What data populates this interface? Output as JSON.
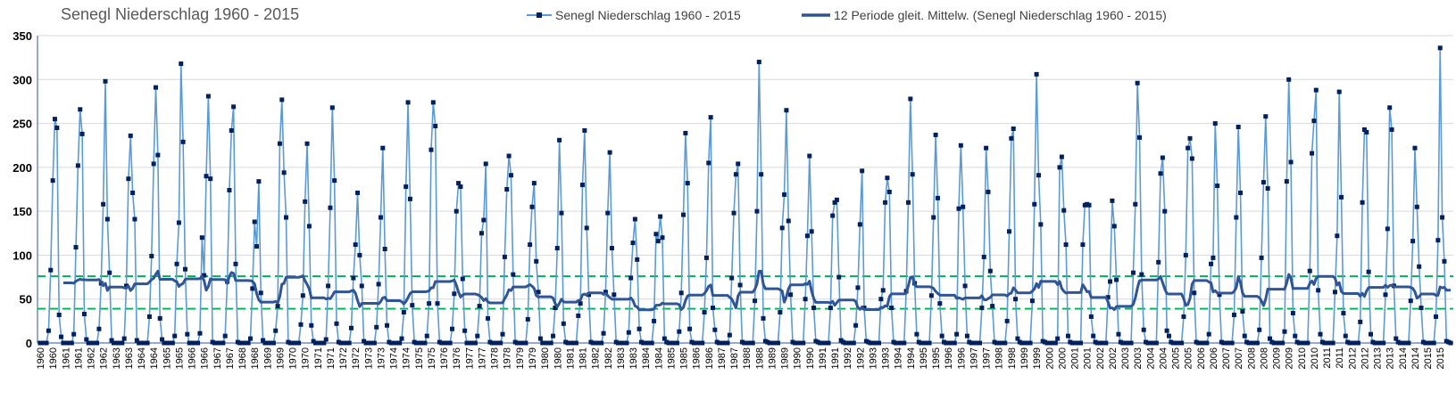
{
  "chart_data": {
    "type": "line",
    "title": "Senegl Niederschlag 1960 - 2015",
    "ylim": [
      0,
      350
    ],
    "yticks": [
      0,
      50,
      100,
      150,
      200,
      250,
      300,
      350
    ],
    "grid": "horizontal",
    "legend_placement": "top",
    "x_start_year": 1960,
    "x_end_year": 2015,
    "colors": {
      "series": "#5b9bd5",
      "markers": "#002060",
      "moving_average": "#2f5597",
      "reference_lines": "#00b050"
    },
    "reference_lines": [
      76,
      39
    ],
    "series": [
      {
        "name": "Senegl Niederschlag 1960 - 2015",
        "monthly_values_by_year": [
          [
            0,
            0,
            0,
            0,
            14,
            83,
            185,
            255,
            245,
            32,
            7,
            0
          ],
          [
            0,
            0,
            0,
            0,
            10,
            109,
            202,
            266,
            238,
            33,
            4,
            0
          ],
          [
            0,
            0,
            0,
            0,
            16,
            68,
            158,
            298,
            141,
            80,
            3,
            0
          ],
          [
            0,
            0,
            0,
            0,
            5,
            65,
            187,
            236,
            171,
            141,
            3,
            0
          ],
          [
            0,
            0,
            0,
            0,
            30,
            99,
            204,
            291,
            214,
            28,
            4,
            0
          ],
          [
            0,
            0,
            0,
            0,
            8,
            90,
            137,
            318,
            229,
            84,
            10,
            0
          ],
          [
            0,
            0,
            0,
            0,
            11,
            120,
            77,
            190,
            281,
            187,
            1,
            0
          ],
          [
            0,
            0,
            0,
            0,
            8,
            70,
            174,
            242,
            269,
            90,
            1,
            0
          ],
          [
            0,
            0,
            0,
            0,
            5,
            62,
            138,
            110,
            184,
            57,
            3,
            0
          ],
          [
            0,
            0,
            0,
            0,
            14,
            42,
            227,
            277,
            194,
            143,
            1,
            0
          ],
          [
            0,
            0,
            0,
            0,
            21,
            54,
            161,
            227,
            133,
            20,
            2,
            0
          ],
          [
            0,
            0,
            0,
            0,
            4,
            65,
            154,
            268,
            185,
            22,
            1,
            0
          ],
          [
            0,
            0,
            0,
            0,
            17,
            74,
            112,
            171,
            100,
            65,
            2,
            0
          ],
          [
            0,
            0,
            0,
            0,
            18,
            67,
            143,
            222,
            107,
            20,
            1,
            0
          ],
          [
            0,
            0,
            0,
            0,
            5,
            35,
            178,
            274,
            164,
            43,
            1,
            0
          ],
          [
            0,
            0,
            0,
            0,
            8,
            45,
            220,
            274,
            247,
            45,
            1,
            0
          ],
          [
            0,
            0,
            0,
            0,
            16,
            56,
            150,
            182,
            178,
            73,
            14,
            0
          ],
          [
            0,
            0,
            0,
            0,
            8,
            42,
            125,
            140,
            204,
            28,
            1,
            0
          ],
          [
            0,
            0,
            0,
            0,
            10,
            98,
            175,
            213,
            191,
            78,
            1,
            0
          ],
          [
            0,
            0,
            0,
            0,
            27,
            112,
            155,
            182,
            93,
            58,
            5,
            0
          ],
          [
            0,
            0,
            0,
            0,
            8,
            40,
            108,
            231,
            148,
            22,
            1,
            0
          ],
          [
            0,
            0,
            0,
            0,
            31,
            45,
            180,
            242,
            131,
            55,
            1,
            0
          ],
          [
            0,
            0,
            0,
            0,
            11,
            58,
            148,
            217,
            108,
            55,
            1,
            0
          ],
          [
            0,
            0,
            0,
            0,
            12,
            74,
            114,
            141,
            95,
            16,
            1,
            0
          ],
          [
            0,
            0,
            0,
            0,
            25,
            124,
            116,
            144,
            120,
            5,
            1,
            0
          ],
          [
            0,
            0,
            0,
            0,
            13,
            57,
            146,
            239,
            182,
            16,
            1,
            0
          ],
          [
            0,
            0,
            0,
            0,
            35,
            97,
            205,
            257,
            40,
            15,
            1,
            0
          ],
          [
            0,
            0,
            0,
            0,
            9,
            74,
            148,
            192,
            204,
            66,
            1,
            0
          ],
          [
            0,
            0,
            0,
            0,
            48,
            150,
            320,
            192,
            28,
            2,
            1,
            0
          ],
          [
            0,
            0,
            0,
            0,
            35,
            131,
            169,
            265,
            139,
            55,
            1,
            0
          ],
          [
            0,
            0,
            0,
            0,
            50,
            122,
            213,
            127,
            40,
            2,
            1,
            0
          ],
          [
            0,
            0,
            0,
            0,
            40,
            145,
            160,
            163,
            75,
            3,
            1,
            0
          ],
          [
            0,
            0,
            0,
            0,
            20,
            63,
            135,
            196,
            40,
            2,
            1,
            0
          ],
          [
            0,
            0,
            0,
            0,
            50,
            60,
            160,
            188,
            172,
            40,
            1,
            0
          ],
          [
            0,
            0,
            0,
            0,
            59,
            160,
            278,
            192,
            68,
            10,
            1,
            0
          ],
          [
            0,
            0,
            0,
            0,
            54,
            143,
            237,
            165,
            45,
            8,
            1,
            0
          ],
          [
            0,
            0,
            0,
            0,
            10,
            153,
            225,
            155,
            65,
            8,
            1,
            0
          ],
          [
            0,
            0,
            0,
            0,
            40,
            98,
            222,
            172,
            82,
            42,
            1,
            0
          ],
          [
            0,
            0,
            0,
            0,
            25,
            127,
            233,
            244,
            50,
            5,
            1,
            0
          ],
          [
            0,
            0,
            0,
            0,
            48,
            158,
            306,
            191,
            135,
            2,
            1,
            0
          ],
          [
            0,
            0,
            0,
            0,
            5,
            200,
            212,
            151,
            112,
            8,
            1,
            0
          ],
          [
            0,
            0,
            0,
            0,
            112,
            157,
            158,
            157,
            30,
            8,
            1,
            0
          ],
          [
            0,
            0,
            0,
            0,
            52,
            70,
            162,
            133,
            72,
            10,
            1,
            0
          ],
          [
            0,
            0,
            0,
            0,
            80,
            158,
            296,
            234,
            78,
            15,
            1,
            0
          ],
          [
            0,
            0,
            0,
            0,
            92,
            193,
            211,
            150,
            14,
            8,
            1,
            0
          ],
          [
            0,
            0,
            0,
            0,
            30,
            100,
            222,
            233,
            210,
            57,
            1,
            0
          ],
          [
            0,
            0,
            0,
            0,
            10,
            90,
            97,
            250,
            179,
            55,
            1,
            0
          ],
          [
            0,
            0,
            0,
            0,
            32,
            143,
            246,
            171,
            36,
            8,
            1,
            0
          ],
          [
            0,
            0,
            0,
            0,
            15,
            97,
            183,
            258,
            176,
            5,
            1,
            0
          ],
          [
            0,
            0,
            0,
            0,
            13,
            184,
            300,
            206,
            34,
            8,
            1,
            0
          ],
          [
            0,
            0,
            0,
            0,
            82,
            216,
            253,
            288,
            60,
            10,
            1,
            0
          ],
          [
            0,
            0,
            0,
            0,
            58,
            122,
            286,
            166,
            34,
            8,
            1,
            0
          ],
          [
            0,
            0,
            0,
            0,
            24,
            160,
            243,
            240,
            81,
            10,
            1,
            0
          ],
          [
            0,
            0,
            0,
            0,
            55,
            130,
            268,
            243,
            65,
            5,
            1,
            0
          ],
          [
            0,
            0,
            0,
            0,
            48,
            116,
            222,
            155,
            87,
            40,
            1,
            0
          ],
          [
            0,
            0,
            0,
            0,
            30,
            117,
            336,
            143,
            93,
            2,
            1,
            0
          ]
        ]
      },
      {
        "name": "12 Periode gleit. Mittelw. (Senegl Niederschlag 1960 - 2015)",
        "type": "moving_average",
        "period": 12
      }
    ]
  }
}
